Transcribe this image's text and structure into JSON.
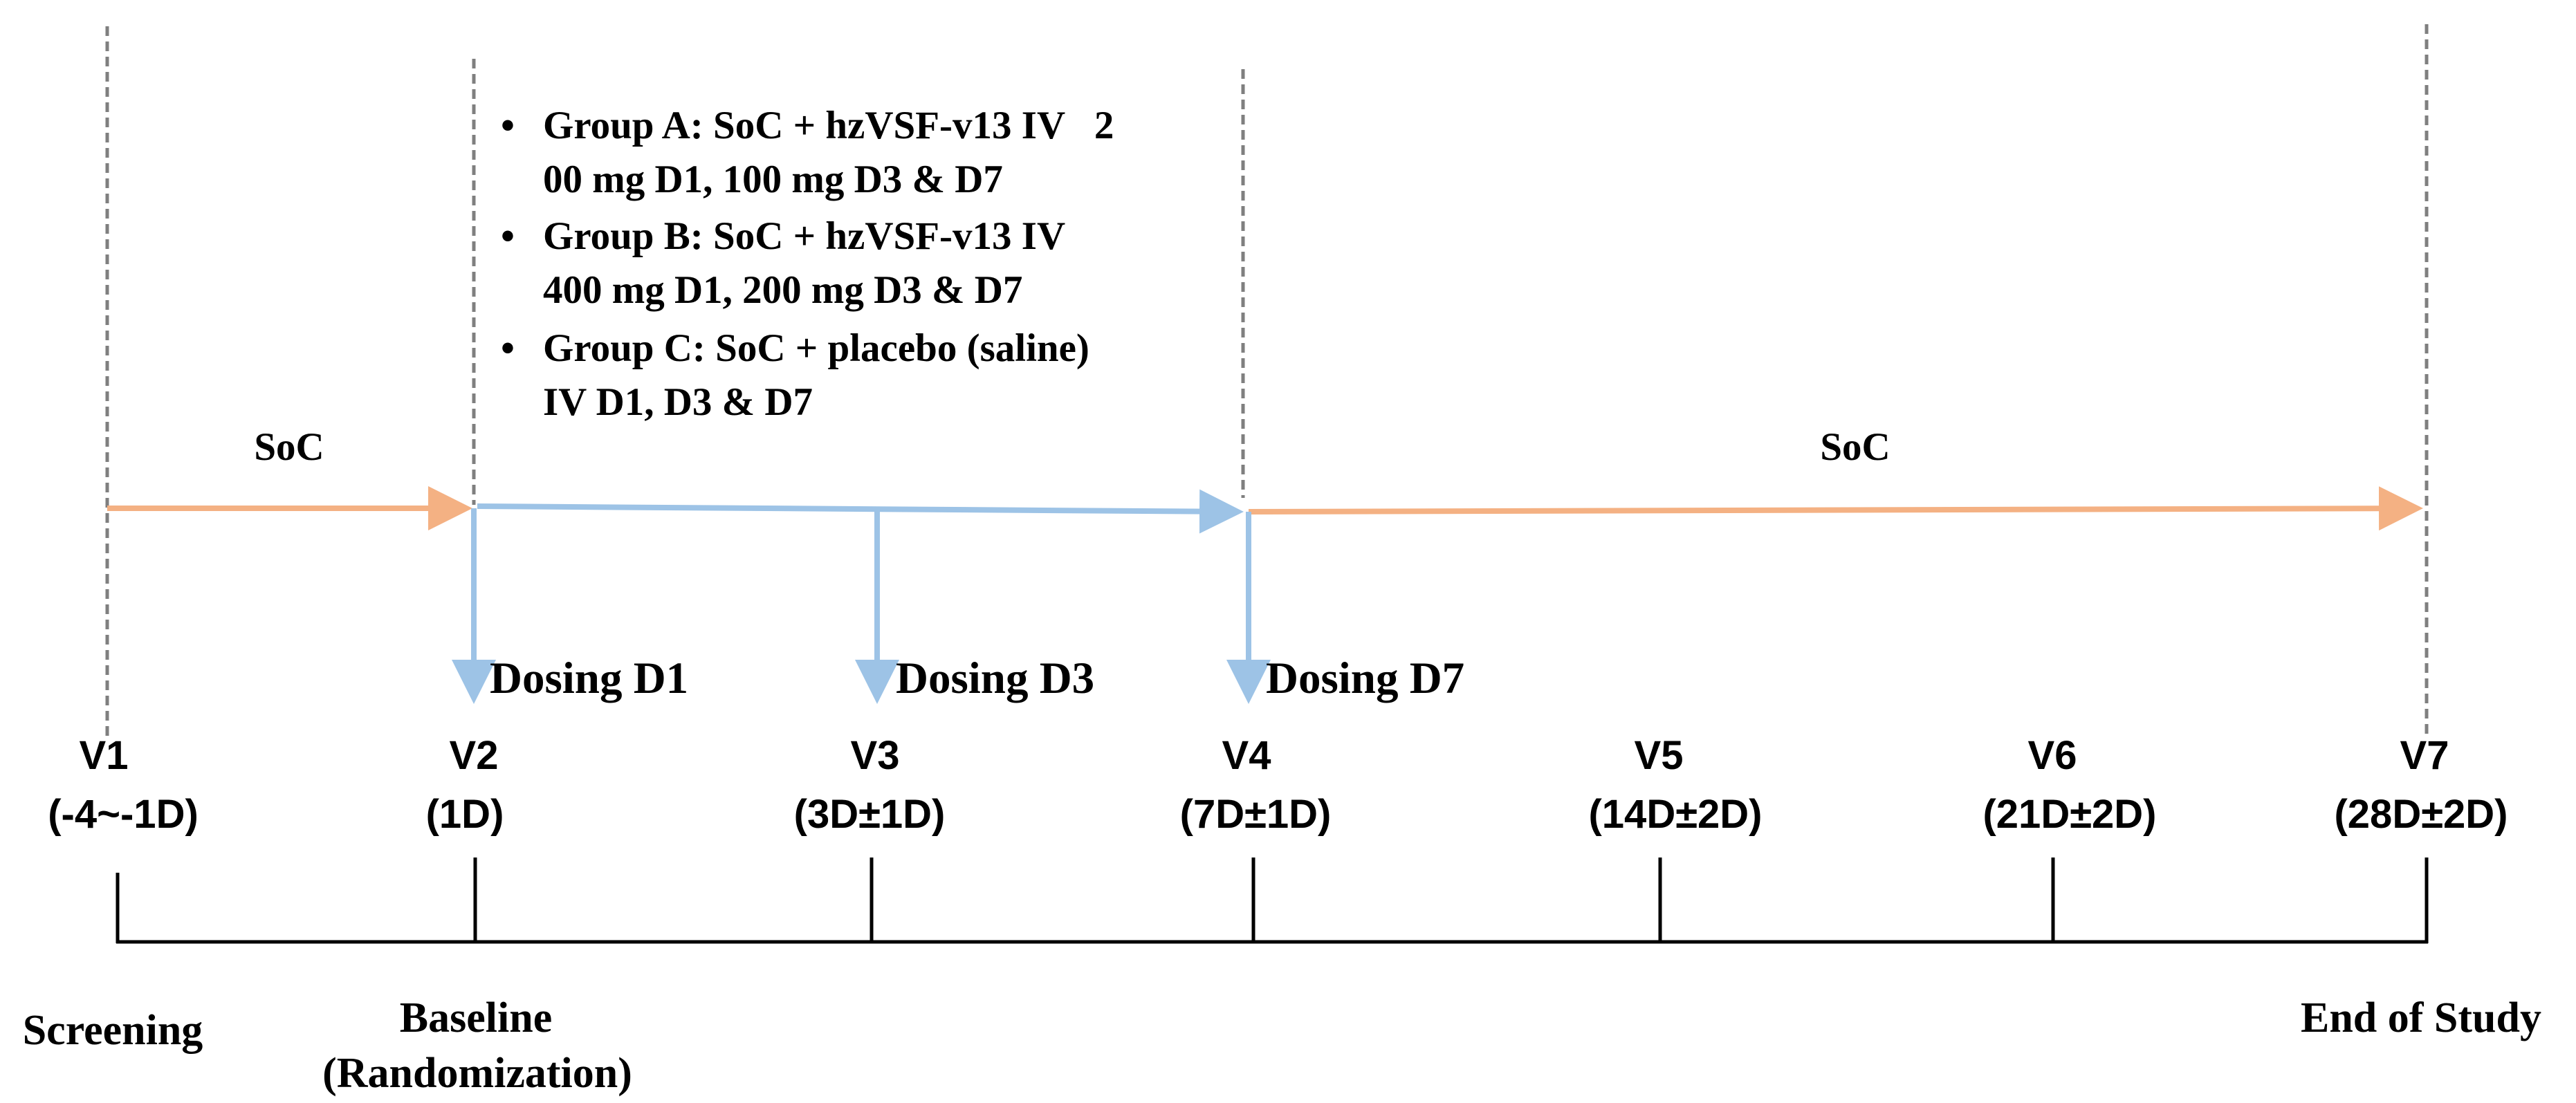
{
  "colors": {
    "soc_arrow": "#F4B183",
    "dosing_arrow": "#9DC3E6",
    "divider": "#7F7F7F",
    "timeline": "#000000"
  },
  "soc_labels": {
    "before": "SoC",
    "after": "SoC"
  },
  "treatment_groups": [
    {
      "lines": [
        "Group A: SoC + hzVSF-v13 IV   2",
        "00 mg D1, 100 mg D3 & D7"
      ]
    },
    {
      "lines": [
        "Group B: SoC + hzVSF-v13 IV",
        "400 mg D1, 200 mg D3 & D7"
      ]
    },
    {
      "lines": [
        "Group C: SoC + placebo (saline)",
        "IV D1, D3 & D7"
      ]
    }
  ],
  "dosing": [
    {
      "label": "Dosing D1"
    },
    {
      "label": "Dosing D3"
    },
    {
      "label": "Dosing D7"
    }
  ],
  "visits": [
    {
      "name": "V1",
      "window": "(-4~-1D)"
    },
    {
      "name": "V2",
      "window": "(1D)"
    },
    {
      "name": "V3",
      "window": "(3D±1D)"
    },
    {
      "name": "V4",
      "window": "(7D±1D)"
    },
    {
      "name": "V5",
      "window": "(14D±2D)"
    },
    {
      "name": "V6",
      "window": "(21D±2D)"
    },
    {
      "name": "V7",
      "window": "(28D±2D)"
    }
  ],
  "phases": {
    "screening": "Screening",
    "baseline": "Baseline",
    "randomization": "(Randomization)",
    "end_of_study": "End of Study"
  }
}
